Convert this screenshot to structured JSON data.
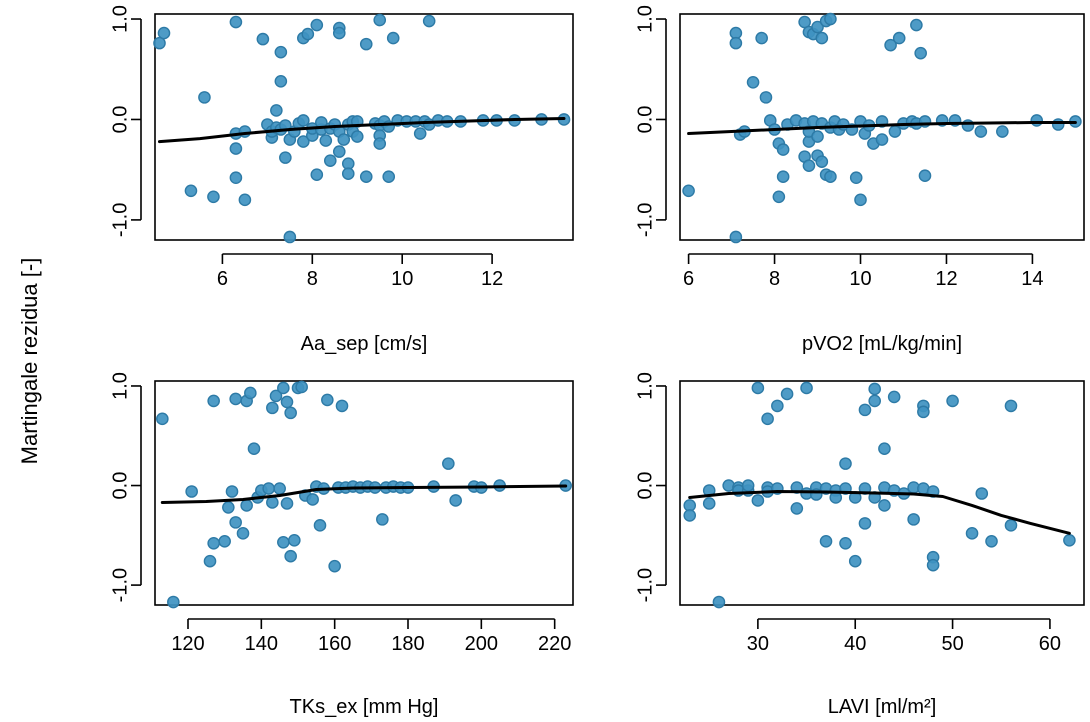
{
  "y_axis_label": "Martingale rezidua [-]",
  "colors": {
    "point_fill": "#3f93c1",
    "point_edge": "#2d7aa6",
    "smooth": "#000000"
  },
  "chart_data": [
    {
      "type": "scatter",
      "xlabel": "Aa_sep [cm/s]",
      "xlim": [
        4.5,
        13.8
      ],
      "xticks": [
        6,
        8,
        10,
        12
      ],
      "ylim": [
        -1.2,
        1.05
      ],
      "yticks": [
        -1.0,
        0.0,
        1.0
      ],
      "ytick_labels": [
        "-1.0",
        "0.0",
        "1.0"
      ],
      "points": [
        [
          4.6,
          0.76
        ],
        [
          4.7,
          0.86
        ],
        [
          5.3,
          -0.71
        ],
        [
          5.6,
          0.22
        ],
        [
          5.8,
          -0.77
        ],
        [
          6.3,
          0.97
        ],
        [
          6.3,
          -0.58
        ],
        [
          6.3,
          -0.29
        ],
        [
          6.3,
          -0.14
        ],
        [
          6.5,
          -0.8
        ],
        [
          6.5,
          -0.12
        ],
        [
          6.9,
          0.8
        ],
        [
          7.0,
          -0.05
        ],
        [
          7.1,
          -0.18
        ],
        [
          7.1,
          -0.12
        ],
        [
          7.2,
          0.09
        ],
        [
          7.2,
          -0.08
        ],
        [
          7.3,
          0.67
        ],
        [
          7.3,
          0.38
        ],
        [
          7.3,
          -0.1
        ],
        [
          7.4,
          -0.06
        ],
        [
          7.4,
          -0.38
        ],
        [
          7.5,
          -1.17
        ],
        [
          7.5,
          -0.2
        ],
        [
          7.6,
          -0.12
        ],
        [
          7.7,
          -0.04
        ],
        [
          7.8,
          0.81
        ],
        [
          7.8,
          -0.22
        ],
        [
          7.8,
          -0.01
        ],
        [
          7.9,
          0.85
        ],
        [
          8.0,
          -0.16
        ],
        [
          8.0,
          -0.09
        ],
        [
          8.1,
          -0.55
        ],
        [
          8.1,
          0.94
        ],
        [
          8.2,
          -0.1
        ],
        [
          8.2,
          -0.03
        ],
        [
          8.3,
          -0.21
        ],
        [
          8.4,
          -0.09
        ],
        [
          8.4,
          -0.41
        ],
        [
          8.5,
          -0.05
        ],
        [
          8.6,
          0.91
        ],
        [
          8.6,
          0.86
        ],
        [
          8.6,
          -0.12
        ],
        [
          8.6,
          -0.32
        ],
        [
          8.7,
          -0.2
        ],
        [
          8.8,
          -0.05
        ],
        [
          8.8,
          -0.44
        ],
        [
          8.8,
          -0.54
        ],
        [
          8.9,
          -0.02
        ],
        [
          8.9,
          -0.12
        ],
        [
          9.0,
          -0.02
        ],
        [
          9.0,
          -0.17
        ],
        [
          9.2,
          -0.57
        ],
        [
          9.2,
          0.75
        ],
        [
          9.4,
          -0.04
        ],
        [
          9.5,
          -0.06
        ],
        [
          9.5,
          0.99
        ],
        [
          9.5,
          -0.16
        ],
        [
          9.5,
          -0.24
        ],
        [
          9.6,
          -0.02
        ],
        [
          9.7,
          -0.57
        ],
        [
          9.7,
          -0.07
        ],
        [
          9.8,
          0.81
        ],
        [
          9.9,
          -0.01
        ],
        [
          10.1,
          -0.02
        ],
        [
          10.3,
          -0.02
        ],
        [
          10.4,
          -0.14
        ],
        [
          10.5,
          -0.02
        ],
        [
          10.6,
          0.98
        ],
        [
          10.6,
          -0.05
        ],
        [
          10.8,
          -0.01
        ],
        [
          11.0,
          -0.02
        ],
        [
          11.3,
          -0.02
        ],
        [
          11.8,
          -0.01
        ],
        [
          12.1,
          -0.01
        ],
        [
          12.5,
          -0.01
        ],
        [
          13.1,
          0.0
        ],
        [
          13.6,
          0.0
        ]
      ],
      "smooth": [
        [
          4.6,
          -0.22
        ],
        [
          5.5,
          -0.19
        ],
        [
          6.5,
          -0.14
        ],
        [
          7.5,
          -0.1
        ],
        [
          8.5,
          -0.07
        ],
        [
          9.5,
          -0.05
        ],
        [
          10.5,
          -0.03
        ],
        [
          11.5,
          -0.015
        ],
        [
          12.5,
          0.0
        ],
        [
          13.6,
          0.01
        ]
      ]
    },
    {
      "type": "scatter",
      "xlabel": "pVO2 [mL/kg/min]",
      "xlim": [
        5.8,
        15.2
      ],
      "xticks": [
        6,
        8,
        10,
        12,
        14
      ],
      "ylim": [
        -1.2,
        1.05
      ],
      "yticks": [
        -1.0,
        0.0,
        1.0
      ],
      "ytick_labels": [
        "-1.0",
        "0.0",
        "1.0"
      ],
      "points": [
        [
          6.0,
          -0.71
        ],
        [
          7.1,
          0.86
        ],
        [
          7.1,
          0.76
        ],
        [
          7.1,
          -1.17
        ],
        [
          7.2,
          -0.15
        ],
        [
          7.3,
          -0.12
        ],
        [
          7.5,
          0.37
        ],
        [
          7.7,
          0.81
        ],
        [
          7.8,
          0.22
        ],
        [
          7.9,
          -0.01
        ],
        [
          8.0,
          -0.1
        ],
        [
          8.1,
          -0.24
        ],
        [
          8.1,
          -0.77
        ],
        [
          8.2,
          -0.57
        ],
        [
          8.2,
          -0.3
        ],
        [
          8.3,
          -0.05
        ],
        [
          8.5,
          -0.01
        ],
        [
          8.7,
          0.97
        ],
        [
          8.7,
          -0.37
        ],
        [
          8.7,
          -0.04
        ],
        [
          8.8,
          0.87
        ],
        [
          8.8,
          -0.46
        ],
        [
          8.8,
          -0.22
        ],
        [
          8.8,
          -0.12
        ],
        [
          8.9,
          0.85
        ],
        [
          8.9,
          -0.02
        ],
        [
          9.0,
          0.92
        ],
        [
          9.0,
          -0.17
        ],
        [
          9.0,
          -0.36
        ],
        [
          9.1,
          0.81
        ],
        [
          9.1,
          -0.04
        ],
        [
          9.1,
          -0.42
        ],
        [
          9.2,
          -0.55
        ],
        [
          9.2,
          0.98
        ],
        [
          9.3,
          -0.57
        ],
        [
          9.3,
          1.0
        ],
        [
          9.3,
          -0.08
        ],
        [
          9.4,
          -0.02
        ],
        [
          9.5,
          -0.1
        ],
        [
          9.6,
          -0.05
        ],
        [
          9.8,
          -0.1
        ],
        [
          9.9,
          -0.58
        ],
        [
          10.0,
          -0.8
        ],
        [
          10.0,
          -0.02
        ],
        [
          10.1,
          -0.14
        ],
        [
          10.2,
          -0.06
        ],
        [
          10.3,
          -0.24
        ],
        [
          10.5,
          -0.2
        ],
        [
          10.5,
          -0.02
        ],
        [
          10.7,
          0.74
        ],
        [
          10.8,
          -0.12
        ],
        [
          10.9,
          0.81
        ],
        [
          11.0,
          -0.04
        ],
        [
          11.2,
          -0.02
        ],
        [
          11.3,
          0.94
        ],
        [
          11.3,
          -0.04
        ],
        [
          11.4,
          0.66
        ],
        [
          11.5,
          -0.56
        ],
        [
          11.5,
          -0.02
        ],
        [
          11.9,
          -0.01
        ],
        [
          12.2,
          -0.01
        ],
        [
          12.5,
          -0.06
        ],
        [
          12.8,
          -0.12
        ],
        [
          13.3,
          -0.12
        ],
        [
          14.1,
          -0.01
        ],
        [
          14.6,
          -0.05
        ],
        [
          15.0,
          -0.02
        ]
      ],
      "smooth": [
        [
          6.0,
          -0.14
        ],
        [
          7.0,
          -0.12
        ],
        [
          8.0,
          -0.1
        ],
        [
          9.0,
          -0.08
        ],
        [
          10.0,
          -0.065
        ],
        [
          11.0,
          -0.05
        ],
        [
          12.0,
          -0.04
        ],
        [
          13.0,
          -0.035
        ],
        [
          14.0,
          -0.03
        ],
        [
          15.0,
          -0.03
        ]
      ]
    },
    {
      "type": "scatter",
      "xlabel": "TKs_ex [mm Hg]",
      "xlim": [
        111,
        225
      ],
      "xticks": [
        120,
        140,
        160,
        180,
        200,
        220
      ],
      "ylim": [
        -1.2,
        1.05
      ],
      "yticks": [
        -1.0,
        0.0,
        1.0
      ],
      "ytick_labels": [
        "-1.0",
        "0.0",
        "1.0"
      ],
      "points": [
        [
          113,
          0.67
        ],
        [
          116,
          -1.17
        ],
        [
          121,
          -0.06
        ],
        [
          126,
          -0.76
        ],
        [
          127,
          0.85
        ],
        [
          127,
          -0.58
        ],
        [
          130,
          -0.56
        ],
        [
          131,
          -0.22
        ],
        [
          132,
          -0.06
        ],
        [
          133,
          0.87
        ],
        [
          133,
          -0.37
        ],
        [
          135,
          -0.48
        ],
        [
          136,
          0.85
        ],
        [
          136,
          -0.2
        ],
        [
          137,
          0.93
        ],
        [
          138,
          0.37
        ],
        [
          139,
          -0.12
        ],
        [
          140,
          -0.05
        ],
        [
          142,
          -0.03
        ],
        [
          143,
          0.78
        ],
        [
          143,
          -0.17
        ],
        [
          144,
          0.9
        ],
        [
          145,
          -0.03
        ],
        [
          146,
          -0.57
        ],
        [
          146,
          0.98
        ],
        [
          147,
          0.84
        ],
        [
          147,
          -0.18
        ],
        [
          148,
          0.73
        ],
        [
          148,
          -0.71
        ],
        [
          149,
          -0.55
        ],
        [
          150,
          0.98
        ],
        [
          151,
          0.99
        ],
        [
          152,
          -0.1
        ],
        [
          154,
          -0.14
        ],
        [
          155,
          -0.01
        ],
        [
          156,
          -0.4
        ],
        [
          157,
          -0.03
        ],
        [
          158,
          0.86
        ],
        [
          160,
          -0.81
        ],
        [
          161,
          -0.02
        ],
        [
          162,
          0.8
        ],
        [
          163,
          -0.02
        ],
        [
          165,
          -0.01
        ],
        [
          167,
          -0.02
        ],
        [
          169,
          -0.01
        ],
        [
          171,
          -0.02
        ],
        [
          173,
          -0.34
        ],
        [
          174,
          -0.02
        ],
        [
          176,
          -0.01
        ],
        [
          178,
          -0.02
        ],
        [
          180,
          -0.02
        ],
        [
          187,
          -0.01
        ],
        [
          191,
          0.22
        ],
        [
          193,
          -0.15
        ],
        [
          198,
          -0.01
        ],
        [
          200,
          -0.02
        ],
        [
          205,
          0.0
        ],
        [
          223,
          0.0
        ]
      ],
      "smooth": [
        [
          113,
          -0.17
        ],
        [
          125,
          -0.16
        ],
        [
          135,
          -0.14
        ],
        [
          145,
          -0.1
        ],
        [
          155,
          -0.04
        ],
        [
          165,
          -0.025
        ],
        [
          180,
          -0.02
        ],
        [
          200,
          -0.015
        ],
        [
          223,
          -0.005
        ]
      ]
    },
    {
      "type": "scatter",
      "xlabel": "LAVI [ml/m²]",
      "xlim": [
        22,
        63.5
      ],
      "xticks": [
        30,
        40,
        50,
        60
      ],
      "ylim": [
        -1.2,
        1.05
      ],
      "yticks": [
        -1.0,
        0.0,
        1.0
      ],
      "ytick_labels": [
        "-1.0",
        "0.0",
        "1.0"
      ],
      "points": [
        [
          23,
          -0.2
        ],
        [
          23,
          -0.3
        ],
        [
          25,
          -0.05
        ],
        [
          25,
          -0.18
        ],
        [
          26,
          -1.17
        ],
        [
          27,
          0.0
        ],
        [
          28,
          -0.02
        ],
        [
          28,
          -0.05
        ],
        [
          29,
          -0.05
        ],
        [
          29,
          0.0
        ],
        [
          30,
          0.98
        ],
        [
          30,
          -0.15
        ],
        [
          31,
          0.67
        ],
        [
          31,
          -0.02
        ],
        [
          31,
          -0.06
        ],
        [
          32,
          0.8
        ],
        [
          32,
          -0.03
        ],
        [
          33,
          0.92
        ],
        [
          34,
          -0.02
        ],
        [
          34,
          -0.23
        ],
        [
          35,
          0.98
        ],
        [
          35,
          -0.08
        ],
        [
          36,
          -0.02
        ],
        [
          36,
          -0.09
        ],
        [
          37,
          -0.56
        ],
        [
          37,
          -0.03
        ],
        [
          38,
          -0.05
        ],
        [
          38,
          -0.12
        ],
        [
          39,
          -0.58
        ],
        [
          39,
          0.22
        ],
        [
          39,
          -0.03
        ],
        [
          40,
          -0.76
        ],
        [
          40,
          -0.12
        ],
        [
          41,
          0.76
        ],
        [
          41,
          -0.38
        ],
        [
          41,
          -0.03
        ],
        [
          42,
          0.97
        ],
        [
          42,
          0.85
        ],
        [
          42,
          -0.12
        ],
        [
          43,
          -0.2
        ],
        [
          43,
          0.37
        ],
        [
          43,
          -0.02
        ],
        [
          44,
          0.89
        ],
        [
          44,
          -0.05
        ],
        [
          45,
          -0.08
        ],
        [
          46,
          -0.34
        ],
        [
          46,
          -0.02
        ],
        [
          47,
          0.8
        ],
        [
          47,
          0.74
        ],
        [
          47,
          -0.03
        ],
        [
          48,
          -0.72
        ],
        [
          48,
          -0.8
        ],
        [
          48,
          -0.06
        ],
        [
          50,
          0.85
        ],
        [
          52,
          -0.48
        ],
        [
          53,
          -0.08
        ],
        [
          54,
          -0.56
        ],
        [
          56,
          0.8
        ],
        [
          56,
          -0.4
        ],
        [
          62,
          -0.55
        ]
      ],
      "smooth": [
        [
          23,
          -0.12
        ],
        [
          27,
          -0.08
        ],
        [
          32,
          -0.06
        ],
        [
          37,
          -0.065
        ],
        [
          42,
          -0.075
        ],
        [
          46,
          -0.085
        ],
        [
          49,
          -0.11
        ],
        [
          52,
          -0.2
        ],
        [
          55,
          -0.3
        ],
        [
          58,
          -0.38
        ],
        [
          62,
          -0.48
        ]
      ]
    }
  ]
}
